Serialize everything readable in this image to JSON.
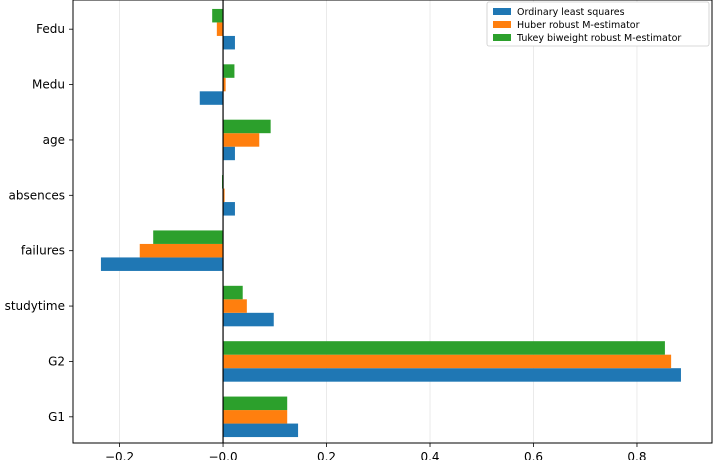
{
  "chart_data": {
    "type": "bar",
    "orientation": "horizontal",
    "categories": [
      "G1",
      "G2",
      "studytime",
      "failures",
      "absences",
      "age",
      "Medu",
      "Fedu"
    ],
    "series": [
      {
        "name": "Ordinary least squares",
        "color": "#1f77b4",
        "values": [
          0.145,
          0.885,
          0.098,
          -0.236,
          0.023,
          0.023,
          -0.045,
          0.023
        ]
      },
      {
        "name": "Huber robust M-estimator",
        "color": "#ff7f0e",
        "values": [
          0.124,
          0.866,
          0.046,
          -0.161,
          0.003,
          0.07,
          0.005,
          -0.012
        ]
      },
      {
        "name": "Tukey biweight robust M-estimator",
        "color": "#2ca02c",
        "values": [
          0.124,
          0.854,
          0.038,
          -0.135,
          -0.002,
          0.092,
          0.022,
          -0.021
        ]
      }
    ],
    "xlim": [
      -0.29,
      0.945
    ],
    "xticks": [
      -0.2,
      0.0,
      0.2,
      0.4,
      0.6,
      0.8
    ],
    "xtick_labels": [
      "−0.2",
      "−0.0",
      "0.2",
      "0.4",
      "0.6",
      "0.8"
    ],
    "grid": "vertical",
    "legend_position": "top-right",
    "title": "",
    "xlabel": "",
    "ylabel": ""
  }
}
